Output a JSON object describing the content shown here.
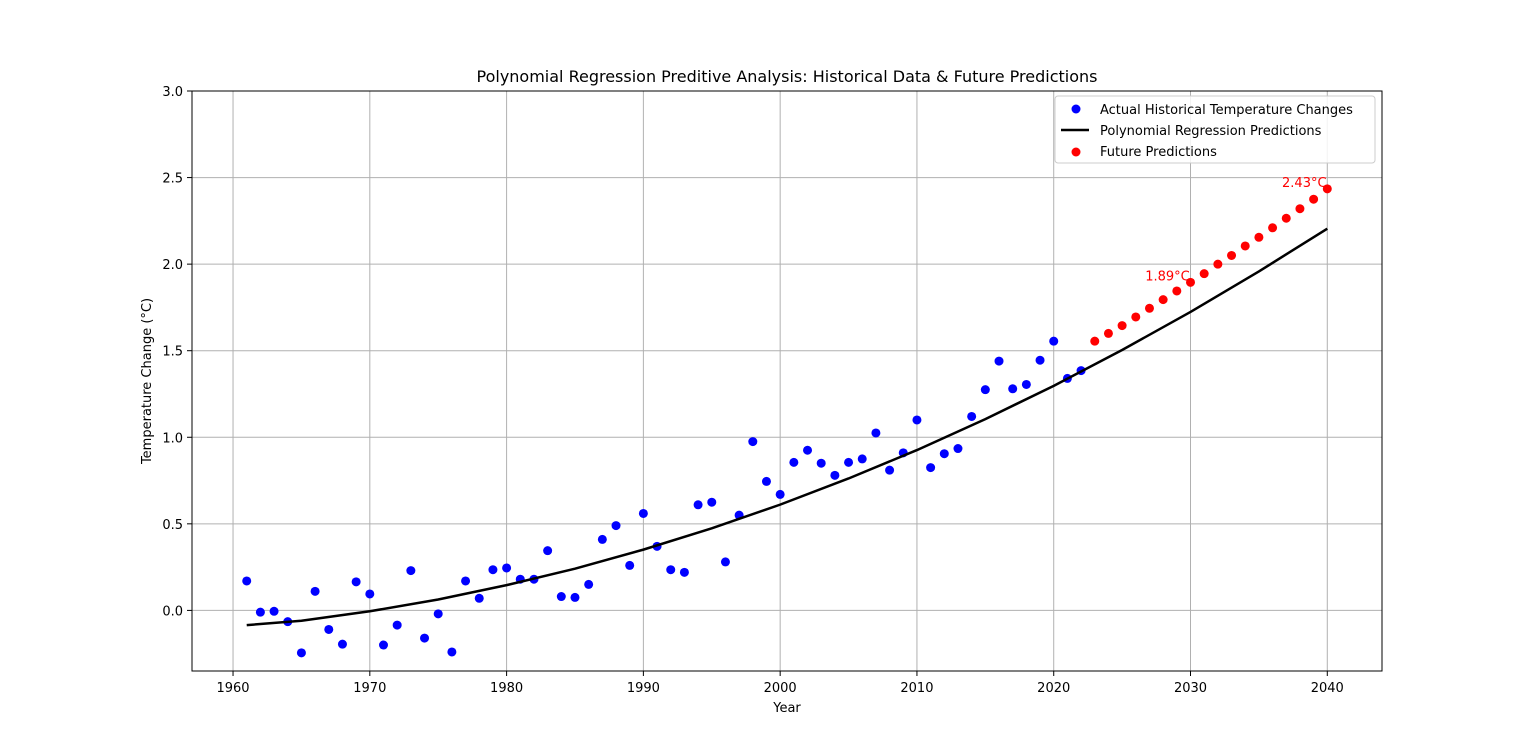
{
  "chart_data": {
    "type": "scatter",
    "title": "Polynomial Regression Preditive Analysis: Historical Data & Future Predictions",
    "xlabel": "Year",
    "ylabel": "Temperature Change (°C)",
    "xlim": [
      1957,
      2044
    ],
    "ylim": [
      -0.35,
      3.0
    ],
    "xticks": [
      1960,
      1970,
      1980,
      1990,
      2000,
      2010,
      2020,
      2030,
      2040
    ],
    "yticks": [
      0.0,
      0.5,
      1.0,
      1.5,
      2.0,
      2.5,
      3.0
    ],
    "xtick_labels": [
      "1960",
      "1970",
      "1980",
      "1990",
      "2000",
      "2010",
      "2020",
      "2030",
      "2040"
    ],
    "ytick_labels": [
      "0.0",
      "0.5",
      "1.0",
      "1.5",
      "2.0",
      "2.5",
      "3.0"
    ],
    "grid": true,
    "legend_position": "top-right",
    "colors": {
      "historical": "#0000ff",
      "fit": "#000000",
      "future": "#ff0000",
      "annotation": "#ff0000",
      "grid": "#b0b0b0"
    },
    "series": [
      {
        "name": "Actual Historical Temperature Changes",
        "kind": "scatter",
        "x": [
          1961,
          1962,
          1963,
          1964,
          1965,
          1966,
          1967,
          1968,
          1969,
          1970,
          1971,
          1972,
          1973,
          1974,
          1975,
          1976,
          1977,
          1978,
          1979,
          1980,
          1981,
          1982,
          1983,
          1984,
          1985,
          1986,
          1987,
          1988,
          1989,
          1990,
          1991,
          1992,
          1993,
          1994,
          1995,
          1996,
          1997,
          1998,
          1999,
          2000,
          2001,
          2002,
          2003,
          2004,
          2005,
          2006,
          2007,
          2008,
          2009,
          2010,
          2011,
          2012,
          2013,
          2014,
          2015,
          2016,
          2017,
          2018,
          2019,
          2020,
          2021,
          2022
        ],
        "y": [
          0.17,
          -0.01,
          -0.005,
          -0.065,
          -0.245,
          0.11,
          -0.11,
          -0.195,
          0.165,
          0.095,
          -0.2,
          -0.085,
          0.23,
          -0.16,
          -0.02,
          -0.24,
          0.17,
          0.07,
          0.235,
          0.245,
          0.18,
          0.18,
          0.345,
          0.08,
          0.075,
          0.15,
          0.41,
          0.49,
          0.26,
          0.56,
          0.37,
          0.235,
          0.22,
          0.61,
          0.625,
          0.28,
          0.55,
          0.975,
          0.745,
          0.67,
          0.855,
          0.925,
          0.85,
          0.78,
          0.855,
          0.875,
          1.025,
          0.81,
          0.91,
          1.1,
          0.825,
          0.905,
          0.935,
          1.12,
          1.275,
          1.44,
          1.28,
          1.305,
          1.445,
          1.555,
          1.34,
          1.385
        ]
      },
      {
        "name": "Polynomial Regression Predictions",
        "kind": "line",
        "x": [
          1961,
          1965,
          1970,
          1975,
          1980,
          1985,
          1990,
          1995,
          2000,
          2005,
          2010,
          2015,
          2020,
          2025,
          2030,
          2035,
          2040
        ],
        "y": [
          -0.085,
          -0.06,
          -0.005,
          0.063,
          0.146,
          0.241,
          0.351,
          0.474,
          0.611,
          0.762,
          0.926,
          1.105,
          1.297,
          1.504,
          1.724,
          1.958,
          2.205
        ]
      },
      {
        "name": "Future Predictions",
        "kind": "scatter",
        "x": [
          2023,
          2024,
          2025,
          2026,
          2027,
          2028,
          2029,
          2030,
          2031,
          2032,
          2033,
          2034,
          2035,
          2036,
          2037,
          2038,
          2039,
          2040
        ],
        "y": [
          1.555,
          1.6,
          1.645,
          1.695,
          1.745,
          1.795,
          1.845,
          1.895,
          1.945,
          2.0,
          2.05,
          2.105,
          2.155,
          2.21,
          2.265,
          2.32,
          2.375,
          2.435
        ]
      }
    ],
    "annotations": [
      {
        "text": "1.89°C",
        "x": 2030,
        "y": 1.895
      },
      {
        "text": "2.43°C",
        "x": 2040,
        "y": 2.435
      }
    ]
  }
}
